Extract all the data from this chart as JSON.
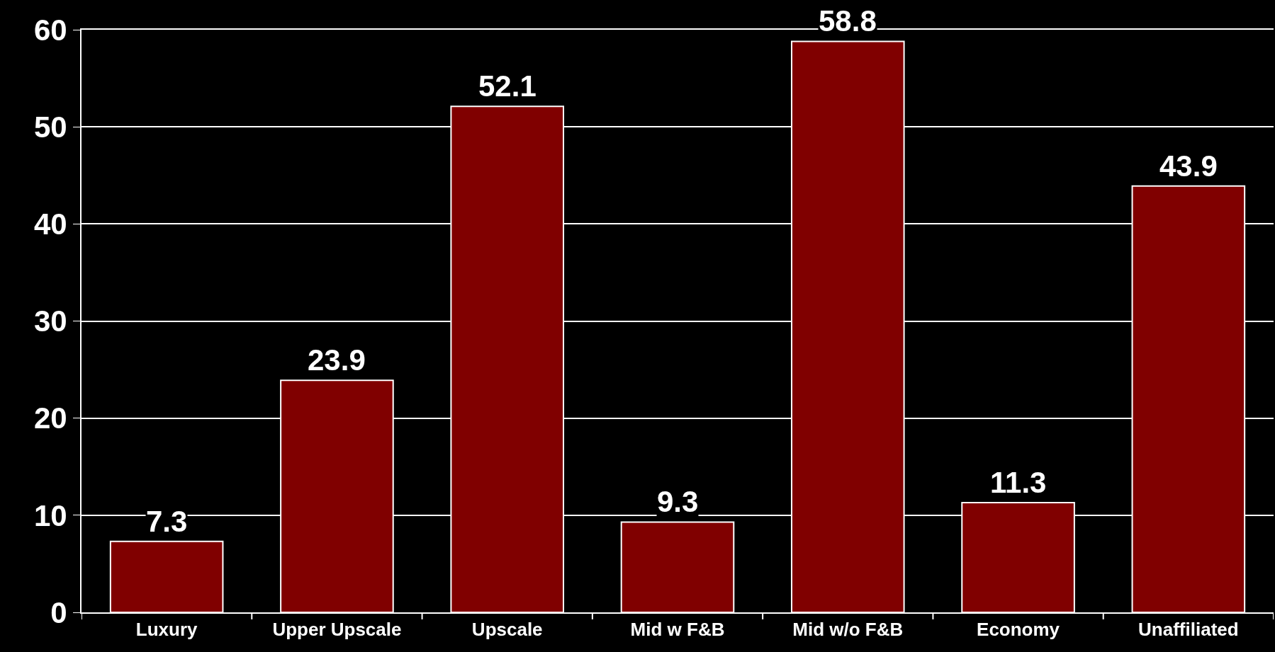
{
  "chart_data": {
    "type": "bar",
    "categories": [
      "Luxury",
      "Upper Upscale",
      "Upscale",
      "Mid w F&B",
      "Mid w/o F&B",
      "Economy",
      "Unaffiliated"
    ],
    "values": [
      7.3,
      23.9,
      52.1,
      9.3,
      58.8,
      11.3,
      43.9
    ],
    "color": "#800000",
    "ylim": [
      0,
      60
    ],
    "yticks": [
      0,
      10,
      20,
      30,
      40,
      50,
      60
    ],
    "grid": "y",
    "data_labels": true
  }
}
